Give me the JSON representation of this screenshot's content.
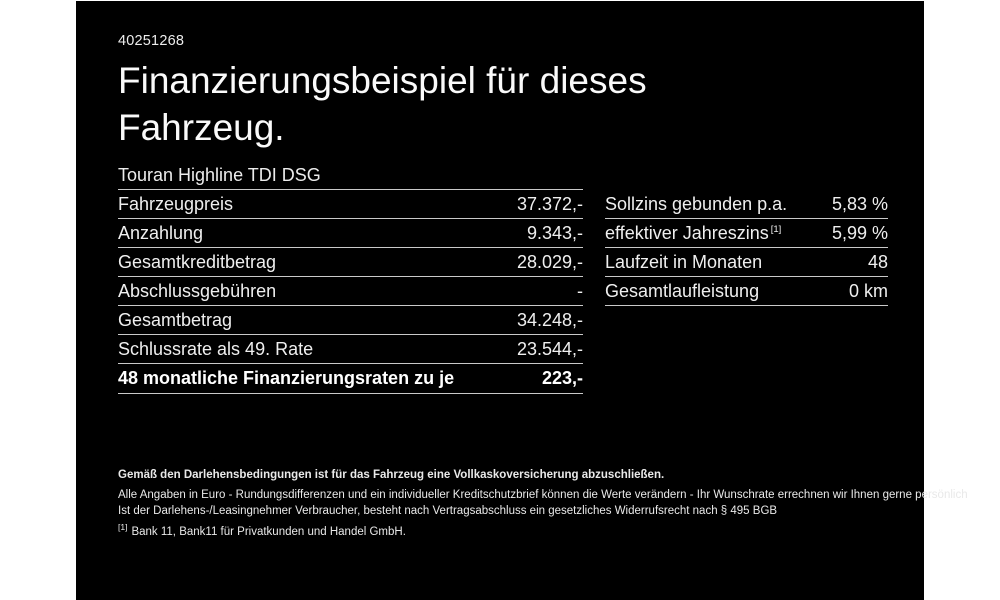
{
  "page": {
    "doc_number": "40251268",
    "title": "Finanzierungsbeispiel für dieses Fahrzeug.",
    "vehicle_model": "Touran Highline TDI DSG"
  },
  "financing_table": {
    "rows": [
      {
        "label": "Fahrzeugpreis",
        "value": "37.372,-"
      },
      {
        "label": "Anzahlung",
        "value": "9.343,-"
      },
      {
        "label": "Gesamtkreditbetrag",
        "value": "28.029,-"
      },
      {
        "label": "Abschlussgebühren",
        "value": "-"
      },
      {
        "label": "Gesamtbetrag",
        "value": "34.248,-"
      },
      {
        "label": "Schlussrate als 49. Rate",
        "value": "23.544,-"
      }
    ],
    "highlight_row": {
      "label": "48 monatliche Finanzierungsraten zu je",
      "value": "223,-"
    }
  },
  "conditions_table": {
    "rows": [
      {
        "label": "Sollzins gebunden p.a.",
        "footnote": "",
        "value": "5,83 %"
      },
      {
        "label": "effektiver Jahreszins",
        "footnote": "[1]",
        "value": "5,99 %"
      },
      {
        "label": "Laufzeit in Monaten",
        "footnote": "",
        "value": "48"
      },
      {
        "label": "Gesamtlaufleistung",
        "footnote": "",
        "value": "0 km"
      }
    ]
  },
  "footer": {
    "bold_note": "Gemäß den Darlehensbedingungen ist für das Fahrzeug eine Vollkaskoversicherung abzuschließen.",
    "note_line1": "Alle Angaben in Euro - Rundungsdifferenzen und ein individueller Kreditschutzbrief können die Werte verändern - Ihr Wunschrate errechnen wir Ihnen gerne persönlich",
    "note_line2": "Ist der Darlehens-/Leasingnehmer Verbraucher, besteht nach Vertragsabschluss ein gesetzliches Widerrufsrecht nach § 495 BGB",
    "footnote_marker": "[1]",
    "footnote_text": "Bank 11, Bank11 für Privatkunden und Handel GmbH."
  },
  "colors": {
    "page_background": "#000000",
    "canvas_background": "#ffffff",
    "text": "#efefef",
    "divider": "#c9c9c9"
  }
}
